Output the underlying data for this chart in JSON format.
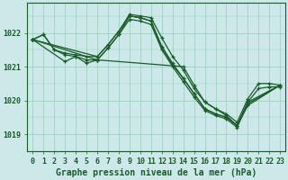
{
  "background_color": "#cce8e8",
  "grid_color": "#99ccbb",
  "line_color": "#1a5c2a",
  "xlabel": "Graphe pression niveau de la mer (hPa)",
  "xlabel_fontsize": 7,
  "tick_fontsize": 6,
  "ytick_labels": [
    1019,
    1020,
    1021,
    1022
  ],
  "ylim": [
    1018.5,
    1022.9
  ],
  "xlim": [
    -0.5,
    23.5
  ],
  "line1_x": [
    0,
    1,
    2,
    3,
    4,
    5,
    6,
    7,
    8,
    9,
    10,
    11,
    12,
    13,
    14,
    15,
    16,
    17,
    18,
    19,
    20,
    21,
    22,
    23
  ],
  "line1_y": [
    1021.8,
    1021.95,
    1021.5,
    1021.4,
    1021.35,
    1021.3,
    1021.3,
    1021.65,
    1022.05,
    1022.55,
    1022.5,
    1022.45,
    1021.85,
    1021.3,
    1020.9,
    1020.35,
    1019.95,
    1019.75,
    1019.6,
    1019.35,
    1020.05,
    1020.5,
    1020.5,
    1020.45
  ],
  "line2_x": [
    0,
    1,
    2,
    3,
    4,
    5,
    6,
    7,
    8,
    9,
    10,
    11,
    12,
    13,
    14,
    15,
    16,
    17,
    18,
    19,
    20,
    21,
    22,
    23
  ],
  "line2_y": [
    1021.8,
    1021.95,
    1021.5,
    1021.35,
    1021.3,
    1021.2,
    1021.2,
    1021.55,
    1021.95,
    1022.5,
    1022.45,
    1022.35,
    1021.55,
    1021.05,
    1020.65,
    1020.2,
    1019.75,
    1019.6,
    1019.5,
    1019.25,
    1019.95,
    1020.35,
    1020.4,
    1020.4
  ],
  "line3_x": [
    0,
    6,
    7,
    8,
    9,
    10,
    11,
    12,
    13,
    14,
    15,
    16,
    17,
    18,
    19,
    20,
    23
  ],
  "line3_y": [
    1021.8,
    1021.3,
    1021.65,
    1022.05,
    1022.5,
    1022.45,
    1022.35,
    1021.6,
    1021.1,
    1020.65,
    1020.2,
    1019.75,
    1019.6,
    1019.5,
    1019.25,
    1019.95,
    1020.45
  ],
  "line4_x": [
    0,
    6,
    7,
    8,
    9,
    10,
    11,
    12,
    13,
    14,
    15,
    16,
    17,
    18,
    19,
    20,
    23
  ],
  "line4_y": [
    1021.8,
    1021.2,
    1021.55,
    1021.95,
    1022.4,
    1022.35,
    1022.25,
    1021.5,
    1021.0,
    1020.55,
    1020.1,
    1019.7,
    1019.55,
    1019.45,
    1019.2,
    1019.9,
    1020.45
  ],
  "line5_x": [
    0,
    3,
    4,
    5,
    6,
    14,
    15,
    16,
    17,
    18,
    19,
    20,
    23
  ],
  "line5_y": [
    1021.8,
    1021.15,
    1021.3,
    1021.1,
    1021.2,
    1021.0,
    1020.45,
    1019.95,
    1019.75,
    1019.55,
    1019.25,
    1019.85,
    1020.45
  ]
}
